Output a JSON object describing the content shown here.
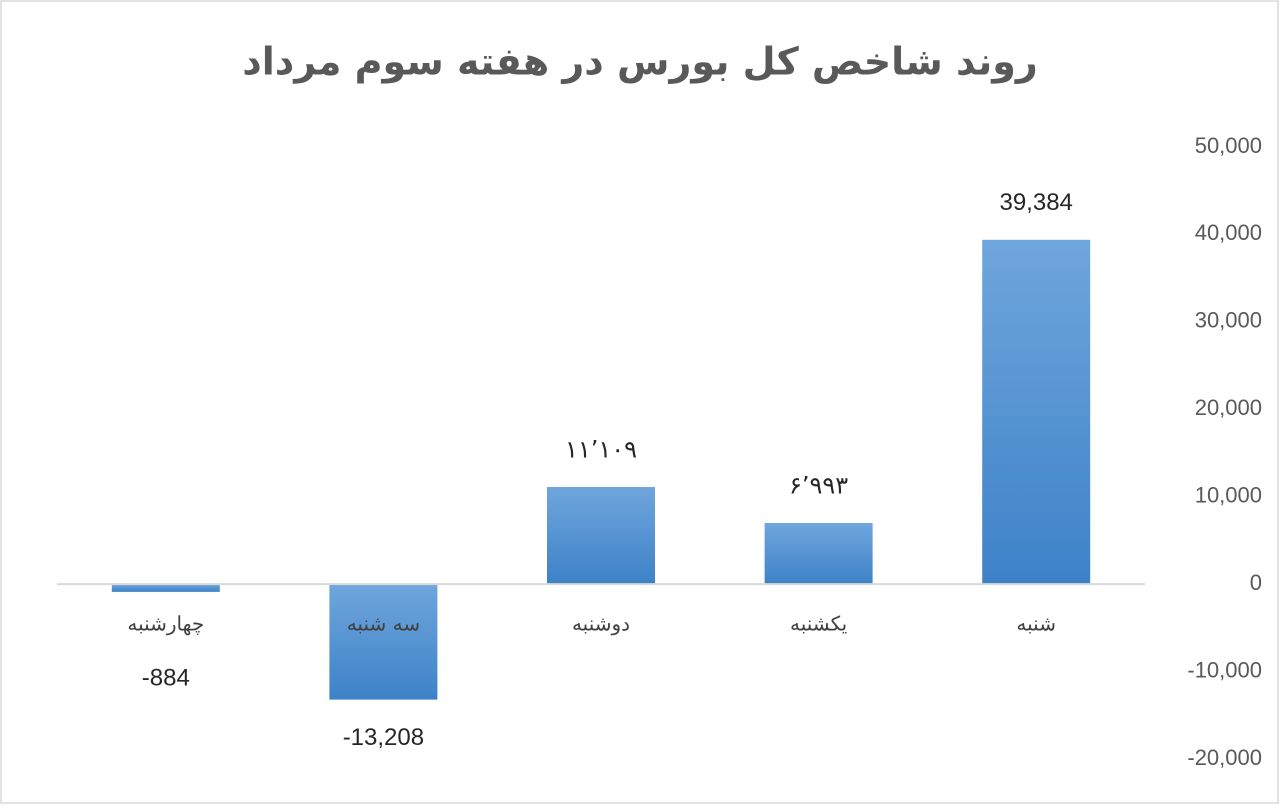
{
  "chart_data": {
    "type": "bar",
    "title": "روند شاخص کل بورس در هفته سوم مرداد",
    "categories": [
      "شنبه",
      "یکشنبه",
      "دوشنبه",
      "سه شنبه",
      "چهارشنبه"
    ],
    "values": [
      39384,
      6993,
      11109,
      -13208,
      -884
    ],
    "value_labels": [
      "39,384",
      "۶٬۹۹۳",
      "۱۱٬۱۰۹",
      "-13,208",
      "-884"
    ],
    "color": "#5b9bd5",
    "ylim": [
      -20000,
      50000
    ],
    "yticks": [
      {
        "value": -20000,
        "label": "-20,000"
      },
      {
        "value": -10000,
        "label": "-10,000"
      },
      0,
      {
        "value": 10000,
        "label": "10,000"
      },
      {
        "value": 20000,
        "label": "20,000"
      },
      {
        "value": 30000,
        "label": "30,000"
      },
      {
        "value": 40000,
        "label": "40,000"
      },
      {
        "value": 50000,
        "label": "50,000"
      }
    ],
    "category_order": "right-to-left"
  }
}
